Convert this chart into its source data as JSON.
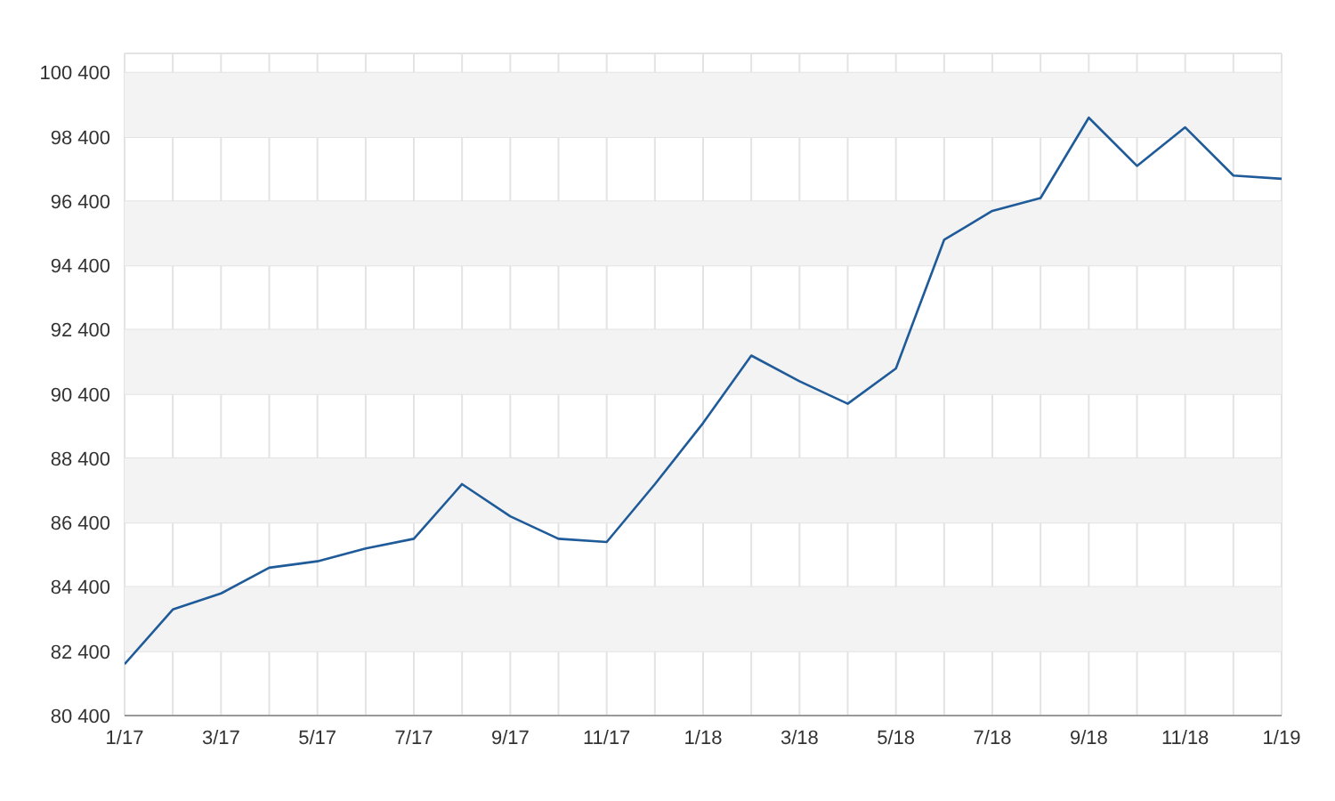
{
  "chart_data": {
    "type": "line",
    "x": [
      "2017-01",
      "2017-02",
      "2017-03",
      "2017-04",
      "2017-05",
      "2017-06",
      "2017-07",
      "2017-08",
      "2017-09",
      "2017-10",
      "2017-11",
      "2017-12",
      "2018-01",
      "2018-02",
      "2018-03",
      "2018-04",
      "2018-05",
      "2018-06",
      "2018-07",
      "2018-08",
      "2018-09",
      "2018-10",
      "2018-11",
      "2018-12",
      "2019-01"
    ],
    "series": [
      {
        "color": "#1f5b99",
        "values": [
          82000,
          83700,
          84200,
          85000,
          85200,
          85600,
          85900,
          87600,
          86600,
          85900,
          85800,
          87600,
          89500,
          91600,
          90800,
          90100,
          91200,
          95200,
          96100,
          96500,
          99000,
          97500,
          98700,
          97200,
          97100
        ]
      }
    ],
    "xlim": [
      "2017-01",
      "2019-01"
    ],
    "xticks": [
      {
        "value": "2017-01",
        "label": "1/17"
      },
      {
        "value": "2017-02",
        "label": null
      },
      {
        "value": "2017-03",
        "label": "3/17"
      },
      {
        "value": "2017-04",
        "label": null
      },
      {
        "value": "2017-05",
        "label": "5/17"
      },
      {
        "value": "2017-06",
        "label": null
      },
      {
        "value": "2017-07",
        "label": "7/17"
      },
      {
        "value": "2017-08",
        "label": null
      },
      {
        "value": "2017-09",
        "label": "9/17"
      },
      {
        "value": "2017-10",
        "label": null
      },
      {
        "value": "2017-11",
        "label": "11/17"
      },
      {
        "value": "2017-12",
        "label": null
      },
      {
        "value": "2018-01",
        "label": "1/18"
      },
      {
        "value": "2018-02",
        "label": null
      },
      {
        "value": "2018-03",
        "label": "3/18"
      },
      {
        "value": "2018-04",
        "label": null
      },
      {
        "value": "2018-05",
        "label": "5/18"
      },
      {
        "value": "2018-06",
        "label": null
      },
      {
        "value": "2018-07",
        "label": "7/18"
      },
      {
        "value": "2018-08",
        "label": null
      },
      {
        "value": "2018-09",
        "label": "9/18"
      },
      {
        "value": "2018-10",
        "label": null
      },
      {
        "value": "2018-11",
        "label": "11/18"
      },
      {
        "value": "2018-12",
        "label": null
      },
      {
        "value": "2019-01",
        "label": "1/19"
      }
    ],
    "ylim": [
      80400,
      101000
    ],
    "yticks": [
      {
        "value": 80400,
        "label": "80 400"
      },
      {
        "value": 82400,
        "label": "82 400"
      },
      {
        "value": 84400,
        "label": "84 400"
      },
      {
        "value": 86400,
        "label": "86 400"
      },
      {
        "value": 88400,
        "label": "88 400"
      },
      {
        "value": 90400,
        "label": "90 400"
      },
      {
        "value": 92400,
        "label": "92 400"
      },
      {
        "value": 94400,
        "label": "94 400"
      },
      {
        "value": 96400,
        "label": "96 400"
      },
      {
        "value": 98400,
        "label": "98 400"
      },
      {
        "value": 100400,
        "label": "100 400"
      }
    ],
    "grid": true,
    "marker": "none",
    "line_style": "solid"
  }
}
